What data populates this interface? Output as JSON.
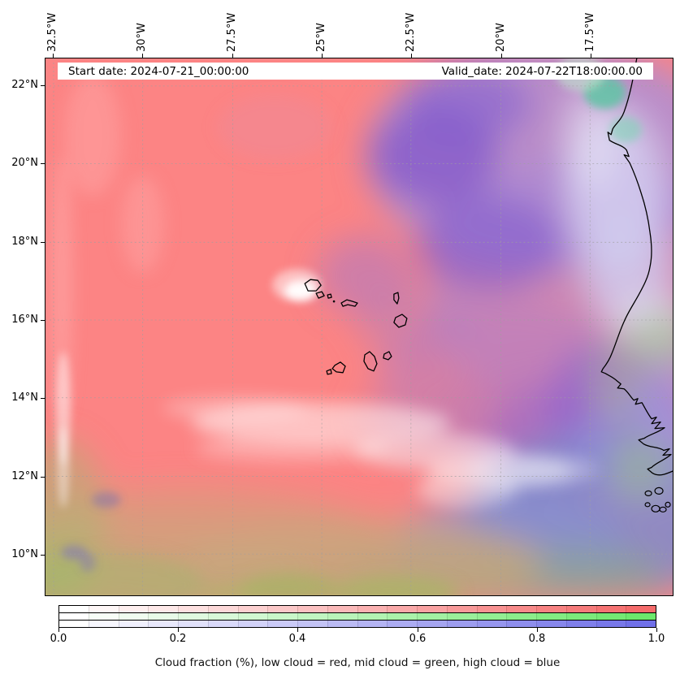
{
  "figure": {
    "title_bar": {
      "start_date": "Start date: 2024-07-21_00:00:00",
      "valid_date": "Valid_date: 2024-07-22T18:00:00.00"
    },
    "x_axis": {
      "ticks": [
        "32.5°W",
        "30°W",
        "27.5°W",
        "25°W",
        "22.5°W",
        "20°W",
        "17.5°W"
      ]
    },
    "y_axis": {
      "ticks": [
        "22°N",
        "20°N",
        "18°N",
        "16°N",
        "14°N",
        "12°N",
        "10°N"
      ]
    },
    "colorbar": {
      "tick_labels": [
        "0.0",
        "0.2",
        "0.4",
        "0.6",
        "0.8",
        "1.0"
      ],
      "segments": 20,
      "bands": [
        {
          "name": "low cloud",
          "color": "#f56b6b"
        },
        {
          "name": "mid cloud",
          "color": "#6ce86c"
        },
        {
          "name": "high cloud",
          "color": "#7070e8"
        }
      ]
    },
    "caption": "Cloud fraction (%), low cloud = red, mid cloud = green, high cloud = blue",
    "legend": {
      "low_cloud": "red",
      "mid_cloud": "green",
      "high_cloud": "blue"
    },
    "map_colors": {
      "low_cloud_field": "#fc8484",
      "high_cloud_field": "#8a60cc",
      "mixed_low_high": "#bd78b6",
      "high_cloud_dense": "#7e89cd",
      "mid_cloud_field": "#9cb95e",
      "clear": "#ffffff"
    }
  }
}
